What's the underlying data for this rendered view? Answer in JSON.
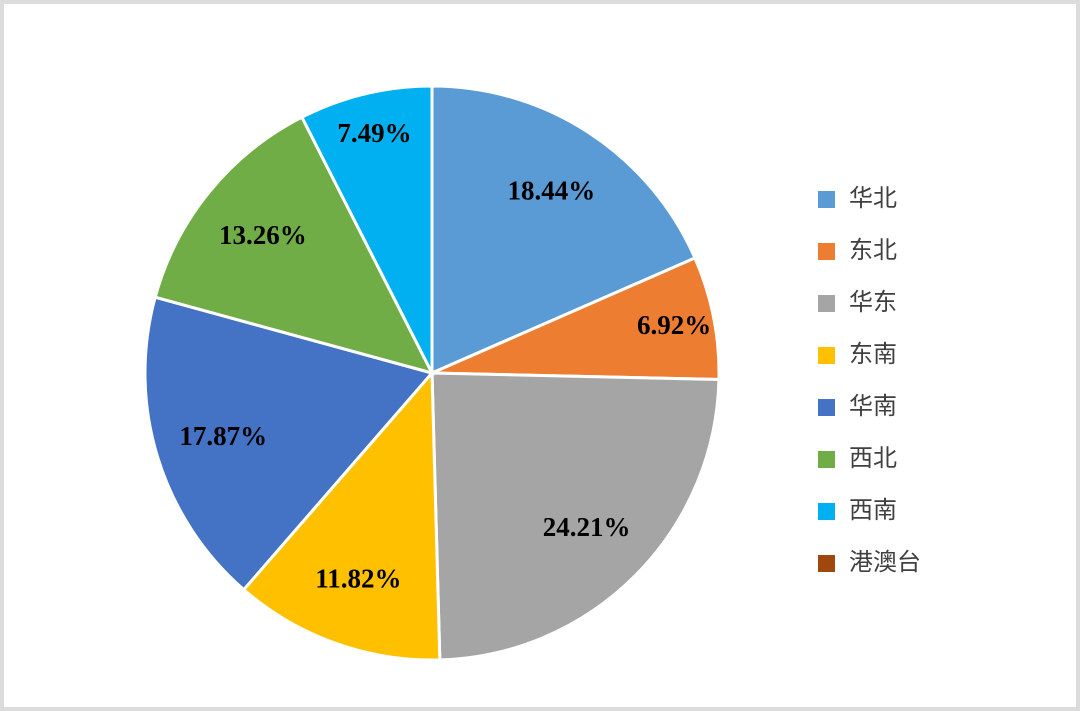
{
  "page": {
    "background_color": "#FFFFFF",
    "frame_border_color": "#DCDCDC"
  },
  "chart_data": {
    "type": "pie",
    "title": "",
    "legend_position": "right",
    "start_angle_deg": 0,
    "direction": "clockwise",
    "slice_border_color": "#FFFFFF",
    "label_color": "#000000",
    "slices": [
      {
        "label": "华北",
        "value": 18.44,
        "display": "18.44%",
        "color": "#5B9BD5"
      },
      {
        "label": "东北",
        "value": 6.92,
        "display": "6.92%",
        "color": "#ED7D31"
      },
      {
        "label": "华东",
        "value": 24.21,
        "display": "24.21%",
        "color": "#A5A5A5"
      },
      {
        "label": "东南",
        "value": 11.82,
        "display": "11.82%",
        "color": "#FFC000"
      },
      {
        "label": "华南",
        "value": 17.87,
        "display": "17.87%",
        "color": "#4472C4"
      },
      {
        "label": "西北",
        "value": 13.26,
        "display": "13.26%",
        "color": "#70AD47"
      },
      {
        "label": "西南",
        "value": 7.49,
        "display": "7.49%",
        "color": "#00B0F0"
      },
      {
        "label": "港澳台",
        "value": 0,
        "display": "",
        "color": "#9E480E"
      }
    ]
  }
}
